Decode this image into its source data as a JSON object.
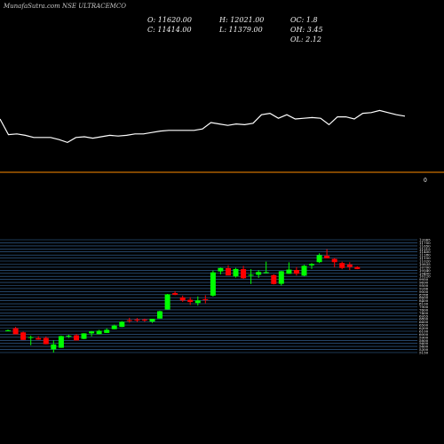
{
  "header": {
    "watermark": "MunafaSutra.com NSE ULTRACEMCO",
    "open": "O: 11620.00",
    "high": "H: 12021.00",
    "oc": "OC: 1.8",
    "close": "C: 11414.00",
    "low": "L: 11379.00",
    "oh": "OH: 3.45",
    "ol": "OL: 2.12"
  },
  "colors": {
    "background": "#000000",
    "line": "#ffffff",
    "divider": "#ff8c00",
    "up": "#00ff00",
    "down": "#ff0000",
    "grid": "#3a6ea5"
  },
  "chart_data": [
    {
      "type": "line",
      "title": "",
      "xlabel": "",
      "ylabel": "",
      "note_label": "0",
      "values": [
        0.05,
        0.27,
        0.26,
        0.28,
        0.31,
        0.31,
        0.31,
        0.34,
        0.38,
        0.31,
        0.3,
        0.32,
        0.3,
        0.28,
        0.29,
        0.28,
        0.26,
        0.26,
        0.24,
        0.22,
        0.21,
        0.21,
        0.21,
        0.21,
        0.19,
        0.1,
        0.12,
        0.14,
        0.12,
        0.13,
        0.11,
        -0.01,
        -0.03,
        0.04,
        -0.01,
        0.05,
        0.04,
        0.03,
        0.04,
        0.13,
        0.02,
        0.02,
        0.05,
        -0.03,
        -0.04,
        -0.07,
        -0.04,
        -0.01,
        0.01
      ]
    },
    {
      "type": "candlestick",
      "title": "",
      "xlabel": "",
      "ylabel": "",
      "ylim": [
        5150,
        12140
      ],
      "grid": true,
      "ticks": [
        "12065",
        "11750",
        "11650",
        "11515",
        "11400",
        "11280",
        "11150",
        "11020",
        "10835",
        "10700",
        "10540",
        "10400",
        "10120",
        "9950",
        "9690",
        "9500",
        "9266",
        "9000",
        "8788",
        "8600",
        "8400",
        "8100",
        "7900",
        "7600",
        "7400",
        "6955",
        "6800",
        "6600",
        "6500",
        "6300",
        "6100",
        "6000",
        "5900",
        "5800",
        "5600",
        "5400",
        "5300",
        "5150"
      ],
      "candles": [
        {
          "o": 6520,
          "h": 6580,
          "l": 6480,
          "c": 6520
        },
        {
          "o": 6650,
          "h": 6740,
          "l": 6290,
          "c": 6280
        },
        {
          "o": 6400,
          "h": 6450,
          "l": 5930,
          "c": 5930
        },
        {
          "o": 6090,
          "h": 6200,
          "l": 5600,
          "c": 6110
        },
        {
          "o": 6040,
          "h": 6160,
          "l": 5940,
          "c": 5950
        },
        {
          "o": 6050,
          "h": 6150,
          "l": 5660,
          "c": 5670
        },
        {
          "o": 5350,
          "h": 5900,
          "l": 5150,
          "c": 5650
        },
        {
          "o": 5450,
          "h": 6200,
          "l": 5440,
          "c": 6170
        },
        {
          "o": 6150,
          "h": 6250,
          "l": 6050,
          "c": 6190
        },
        {
          "o": 6220,
          "h": 6300,
          "l": 5910,
          "c": 5900
        },
        {
          "o": 6000,
          "h": 6350,
          "l": 5980,
          "c": 6340
        },
        {
          "o": 6340,
          "h": 6480,
          "l": 6150,
          "c": 6460
        },
        {
          "o": 6290,
          "h": 6560,
          "l": 6280,
          "c": 6500
        },
        {
          "o": 6370,
          "h": 6650,
          "l": 6360,
          "c": 6560
        },
        {
          "o": 6600,
          "h": 6880,
          "l": 6590,
          "c": 6820
        },
        {
          "o": 6740,
          "h": 7100,
          "l": 6730,
          "c": 7060
        },
        {
          "o": 7160,
          "h": 7300,
          "l": 7000,
          "c": 7150
        },
        {
          "o": 7200,
          "h": 7290,
          "l": 7040,
          "c": 7190
        },
        {
          "o": 7200,
          "h": 7250,
          "l": 7060,
          "c": 7150
        },
        {
          "o": 7070,
          "h": 7230,
          "l": 6990,
          "c": 7240
        },
        {
          "o": 7260,
          "h": 7740,
          "l": 7250,
          "c": 7710
        },
        {
          "o": 7820,
          "h": 8780,
          "l": 7810,
          "c": 8760
        },
        {
          "o": 8830,
          "h": 8960,
          "l": 8700,
          "c": 8730
        },
        {
          "o": 8560,
          "h": 8680,
          "l": 8290,
          "c": 8380
        },
        {
          "o": 8420,
          "h": 8580,
          "l": 8100,
          "c": 8280
        },
        {
          "o": 8220,
          "h": 8630,
          "l": 8060,
          "c": 8380
        },
        {
          "o": 8460,
          "h": 8700,
          "l": 8200,
          "c": 8440
        },
        {
          "o": 8680,
          "h": 10230,
          "l": 8620,
          "c": 10120
        },
        {
          "o": 10180,
          "h": 10420,
          "l": 10000,
          "c": 10390
        },
        {
          "o": 10380,
          "h": 10560,
          "l": 9940,
          "c": 9930
        },
        {
          "o": 9870,
          "h": 10400,
          "l": 9800,
          "c": 10330
        },
        {
          "o": 10320,
          "h": 10520,
          "l": 9720,
          "c": 9760
        },
        {
          "o": 9960,
          "h": 10320,
          "l": 9400,
          "c": 9970
        },
        {
          "o": 9970,
          "h": 10260,
          "l": 9780,
          "c": 10140
        },
        {
          "o": 10130,
          "h": 10780,
          "l": 10060,
          "c": 10130
        },
        {
          "o": 9950,
          "h": 10000,
          "l": 9370,
          "c": 9400
        },
        {
          "o": 9410,
          "h": 10210,
          "l": 9300,
          "c": 10190
        },
        {
          "o": 10030,
          "h": 10740,
          "l": 10020,
          "c": 10290
        },
        {
          "o": 10270,
          "h": 10450,
          "l": 9920,
          "c": 10040
        },
        {
          "o": 9920,
          "h": 10580,
          "l": 9880,
          "c": 10530
        },
        {
          "o": 10560,
          "h": 10700,
          "l": 10340,
          "c": 10640
        },
        {
          "o": 10750,
          "h": 11300,
          "l": 10700,
          "c": 11180
        },
        {
          "o": 11150,
          "h": 11550,
          "l": 10990,
          "c": 10990
        },
        {
          "o": 10950,
          "h": 11010,
          "l": 10430,
          "c": 10750
        },
        {
          "o": 10700,
          "h": 10780,
          "l": 10310,
          "c": 10390
        },
        {
          "o": 10610,
          "h": 10750,
          "l": 10260,
          "c": 10450
        },
        {
          "o": 10450,
          "h": 10500,
          "l": 10320,
          "c": 10330
        }
      ]
    }
  ]
}
